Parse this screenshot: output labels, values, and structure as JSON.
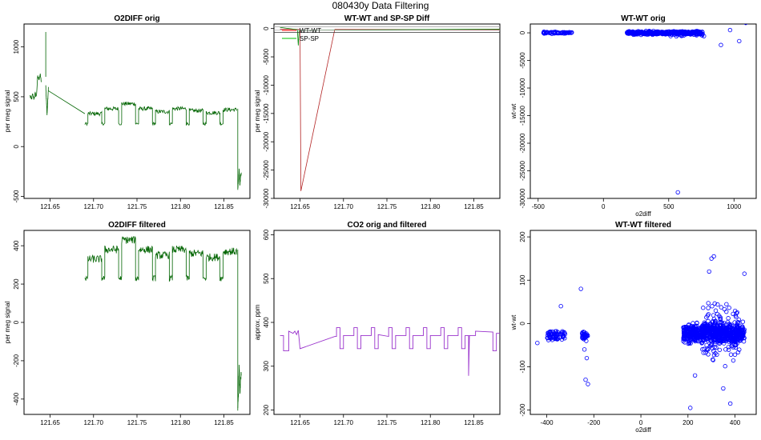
{
  "figure": {
    "title": "080430y   Data Filtering"
  },
  "chart_data": [
    {
      "id": "p1",
      "type": "line",
      "title": "O2DIFF orig",
      "xlabel": "",
      "ylabel": "per meg signal",
      "xlim": [
        121.62,
        121.88
      ],
      "ylim": [
        -520,
        1230
      ],
      "xticks": [
        121.65,
        121.7,
        121.75,
        121.8,
        121.85
      ],
      "xtick_labels": [
        "121.65",
        "121.70",
        "121.75",
        "121.80",
        "121.85"
      ],
      "yticks": [
        -500,
        0,
        500,
        1000
      ],
      "ytick_labels": [
        "-500",
        "0",
        "500",
        "1000"
      ],
      "color": "#006400",
      "segments": [
        {
          "kind": "series",
          "x0": 121.627,
          "x1": 121.64,
          "levels": [
            510,
            470,
            520,
            480,
            530,
            500,
            700,
            680,
            720,
            650
          ]
        },
        {
          "kind": "spike",
          "x": 121.645,
          "y0": 700,
          "y1": 1150
        },
        {
          "kind": "series",
          "x0": 121.645,
          "x1": 121.648,
          "levels": [
            600,
            330,
            580
          ]
        },
        {
          "kind": "line",
          "points": [
            [
              121.648,
              560
            ],
            [
              121.69,
              330
            ]
          ]
        },
        {
          "kind": "blocks",
          "x0": 121.69,
          "x1": 121.865,
          "high": 400,
          "low": 230,
          "hiHeights": [
            330,
            380,
            430,
            380,
            350,
            380,
            360,
            340,
            370
          ],
          "noise": 20
        },
        {
          "kind": "drop",
          "x": 121.866,
          "y0": 380,
          "y1": -420
        },
        {
          "kind": "series",
          "x0": 121.866,
          "x1": 121.87,
          "levels": [
            -420,
            -350,
            -240,
            -380,
            -300,
            -270
          ]
        }
      ]
    },
    {
      "id": "p2",
      "type": "line",
      "title": "WT-WT and SP-SP Diff",
      "xlabel": "",
      "ylabel": "per meg signal",
      "xlim": [
        121.62,
        121.88
      ],
      "ylim": [
        -30000,
        800
      ],
      "xticks": [
        121.65,
        121.7,
        121.75,
        121.8,
        121.85
      ],
      "xtick_labels": [
        "121.65",
        "121.70",
        "121.75",
        "121.80",
        "121.85"
      ],
      "yticks": [
        -30000,
        -25000,
        -20000,
        -15000,
        -10000,
        -5000,
        0
      ],
      "ytick_labels": [
        "-30000",
        "-25000",
        "-20000",
        "-15000",
        "-10000",
        "-5000",
        "0"
      ],
      "legend": {
        "position": "top-left",
        "entries": [
          {
            "name": "WT-WT",
            "color": "#ff0000"
          },
          {
            "name": "SP-SP",
            "color": "#00c000"
          }
        ]
      },
      "series": [
        {
          "name": "WT-WT",
          "color": "#b22222",
          "points": [
            [
              121.627,
              -100
            ],
            [
              121.65,
              -150
            ],
            [
              121.651,
              -28700
            ],
            [
              121.69,
              -150
            ],
            [
              121.88,
              -200
            ]
          ]
        },
        {
          "name": "SP-SP",
          "color": "#008000",
          "points": [
            [
              121.627,
              200
            ],
            [
              121.647,
              -200
            ],
            [
              121.648,
              -3000
            ],
            [
              121.649,
              -300
            ],
            [
              121.88,
              -100
            ]
          ]
        }
      ],
      "hlines": [
        {
          "y": 300,
          "color": "#aaaaaa"
        },
        {
          "y": -300,
          "color": "#aaaaaa"
        },
        {
          "y": -700,
          "color": "#333333"
        }
      ]
    },
    {
      "id": "p3",
      "type": "scatter",
      "title": "WT-WT orig",
      "xlabel": "o2diff",
      "ylabel": "wt-wt",
      "xlim": [
        -560,
        1170
      ],
      "ylim": [
        -30000,
        1600
      ],
      "xticks": [
        -500,
        0,
        500,
        1000
      ],
      "xtick_labels": [
        "-500",
        "0",
        "500",
        "1000"
      ],
      "yticks": [
        -30000,
        -25000,
        -20000,
        -15000,
        -10000,
        -5000,
        0
      ],
      "ytick_labels": [
        "-30000",
        "-25000",
        "-20000",
        "-15000",
        "-10000",
        "-5000",
        "0"
      ],
      "color": "#0000ff",
      "clusters": [
        {
          "x0": -460,
          "x1": -240,
          "y0": -250,
          "y1": 250,
          "n": 60
        },
        {
          "x0": 180,
          "x1": 760,
          "y0": -400,
          "y1": 400,
          "n": 420
        },
        {
          "x0": 500,
          "x1": 760,
          "y0": -1000,
          "y1": 600,
          "n": 40
        }
      ],
      "points": [
        [
          560,
          3500
        ],
        [
          600,
          2500
        ],
        [
          970,
          500
        ],
        [
          1090,
          1800
        ],
        [
          900,
          -2200
        ],
        [
          1040,
          -1500
        ],
        [
          770,
          -600
        ],
        [
          570,
          -28900
        ]
      ]
    },
    {
      "id": "p4",
      "type": "line",
      "title": "O2DIFF filtered",
      "xlabel": "",
      "ylabel": "per meg signal",
      "xlim": [
        121.62,
        121.88
      ],
      "ylim": [
        -480,
        480
      ],
      "xticks": [
        121.65,
        121.7,
        121.75,
        121.8,
        121.85
      ],
      "xtick_labels": [
        "121.65",
        "121.70",
        "121.75",
        "121.80",
        "121.85"
      ],
      "yticks": [
        -400,
        -200,
        0,
        200,
        400
      ],
      "ytick_labels": [
        "-400",
        "-200",
        "0",
        "200",
        "400"
      ],
      "color": "#006400",
      "segments": [
        {
          "kind": "blocks",
          "x0": 121.69,
          "x1": 121.865,
          "high": 400,
          "low": 230,
          "hiHeights": [
            330,
            380,
            430,
            380,
            350,
            380,
            360,
            340,
            370
          ],
          "noise": 20
        },
        {
          "kind": "drop",
          "x": 121.866,
          "y0": 380,
          "y1": -460
        },
        {
          "kind": "series",
          "x0": 121.866,
          "x1": 121.87,
          "levels": [
            -450,
            -370,
            -220,
            -380,
            -300,
            -260
          ]
        }
      ]
    },
    {
      "id": "p5",
      "type": "line",
      "title": "CO2 orig and filtered",
      "xlabel": "",
      "ylabel": "approx. ppm",
      "xlim": [
        121.62,
        121.88
      ],
      "ylim": [
        190,
        610
      ],
      "xticks": [
        121.65,
        121.7,
        121.75,
        121.8,
        121.85
      ],
      "xtick_labels": [
        "121.65",
        "121.70",
        "121.75",
        "121.80",
        "121.85"
      ],
      "yticks": [
        200,
        300,
        400,
        500,
        600
      ],
      "ytick_labels": [
        "200",
        "300",
        "400",
        "500",
        "600"
      ],
      "color": "#9932cc",
      "series_points": [
        [
          121.627,
          370
        ],
        [
          121.631,
          370
        ],
        [
          121.631,
          335
        ],
        [
          121.637,
          335
        ],
        [
          121.637,
          380
        ],
        [
          121.642,
          375
        ],
        [
          121.644,
          380
        ],
        [
          121.646,
          372
        ],
        [
          121.648,
          382
        ],
        [
          121.65,
          340
        ],
        [
          121.69,
          368
        ],
        [
          121.692,
          368
        ],
        [
          121.692,
          388
        ],
        [
          121.696,
          388
        ],
        [
          121.696,
          340
        ],
        [
          121.7,
          340
        ],
        [
          121.7,
          370
        ],
        [
          121.712,
          370
        ],
        [
          121.712,
          388
        ],
        [
          121.716,
          388
        ],
        [
          121.716,
          340
        ],
        [
          121.72,
          340
        ],
        [
          121.72,
          370
        ],
        [
          121.732,
          370
        ],
        [
          121.732,
          388
        ],
        [
          121.736,
          388
        ],
        [
          121.736,
          340
        ],
        [
          121.74,
          340
        ],
        [
          121.74,
          372
        ],
        [
          121.752,
          368
        ],
        [
          121.752,
          388
        ],
        [
          121.756,
          388
        ],
        [
          121.756,
          340
        ],
        [
          121.76,
          340
        ],
        [
          121.76,
          370
        ],
        [
          121.772,
          370
        ],
        [
          121.772,
          388
        ],
        [
          121.776,
          388
        ],
        [
          121.776,
          340
        ],
        [
          121.78,
          340
        ],
        [
          121.78,
          370
        ],
        [
          121.792,
          370
        ],
        [
          121.792,
          388
        ],
        [
          121.796,
          388
        ],
        [
          121.796,
          340
        ],
        [
          121.8,
          340
        ],
        [
          121.8,
          370
        ],
        [
          121.812,
          370
        ],
        [
          121.812,
          388
        ],
        [
          121.816,
          388
        ],
        [
          121.816,
          340
        ],
        [
          121.82,
          340
        ],
        [
          121.82,
          370
        ],
        [
          121.832,
          370
        ],
        [
          121.832,
          388
        ],
        [
          121.836,
          388
        ],
        [
          121.836,
          340
        ],
        [
          121.84,
          340
        ],
        [
          121.84,
          370
        ],
        [
          121.844,
          370
        ],
        [
          121.844,
          278
        ],
        [
          121.845,
          370
        ],
        [
          121.852,
          370
        ],
        [
          121.852,
          380
        ],
        [
          121.872,
          378
        ],
        [
          121.872,
          335
        ],
        [
          121.876,
          335
        ],
        [
          121.876,
          375
        ],
        [
          121.88,
          375
        ]
      ]
    },
    {
      "id": "p6",
      "type": "scatter",
      "title": "WT-WT filtered",
      "xlabel": "o2diff",
      "ylabel": "wt-wt",
      "xlim": [
        -470,
        490
      ],
      "ylim": [
        -210,
        215
      ],
      "xticks": [
        -400,
        -200,
        0,
        200,
        400
      ],
      "xtick_labels": [
        "-400",
        "-200",
        "0",
        "200",
        "400"
      ],
      "yticks": [
        -200,
        -100,
        0,
        100,
        200
      ],
      "ytick_labels": [
        "-200",
        "-100",
        "0",
        "100",
        "200"
      ],
      "color": "#0000ff",
      "clusters": [
        {
          "x0": -400,
          "x1": -320,
          "y0": -45,
          "y1": -10,
          "n": 70
        },
        {
          "x0": -250,
          "x1": -225,
          "y0": -45,
          "y1": -15,
          "n": 30
        },
        {
          "x0": 180,
          "x1": 440,
          "y0": -55,
          "y1": 10,
          "n": 700
        },
        {
          "x0": 260,
          "x1": 420,
          "y0": -110,
          "y1": 70,
          "n": 160
        }
      ],
      "points": [
        [
          -440,
          -45
        ],
        [
          -340,
          40
        ],
        [
          -255,
          80
        ],
        [
          -235,
          -130
        ],
        [
          -225,
          -140
        ],
        [
          -230,
          -80
        ],
        [
          -240,
          -60
        ],
        [
          210,
          -195
        ],
        [
          310,
          155
        ],
        [
          300,
          150
        ],
        [
          380,
          -185
        ],
        [
          350,
          -150
        ],
        [
          440,
          115
        ],
        [
          230,
          -120
        ],
        [
          290,
          120
        ],
        [
          360,
          -60
        ]
      ]
    }
  ]
}
